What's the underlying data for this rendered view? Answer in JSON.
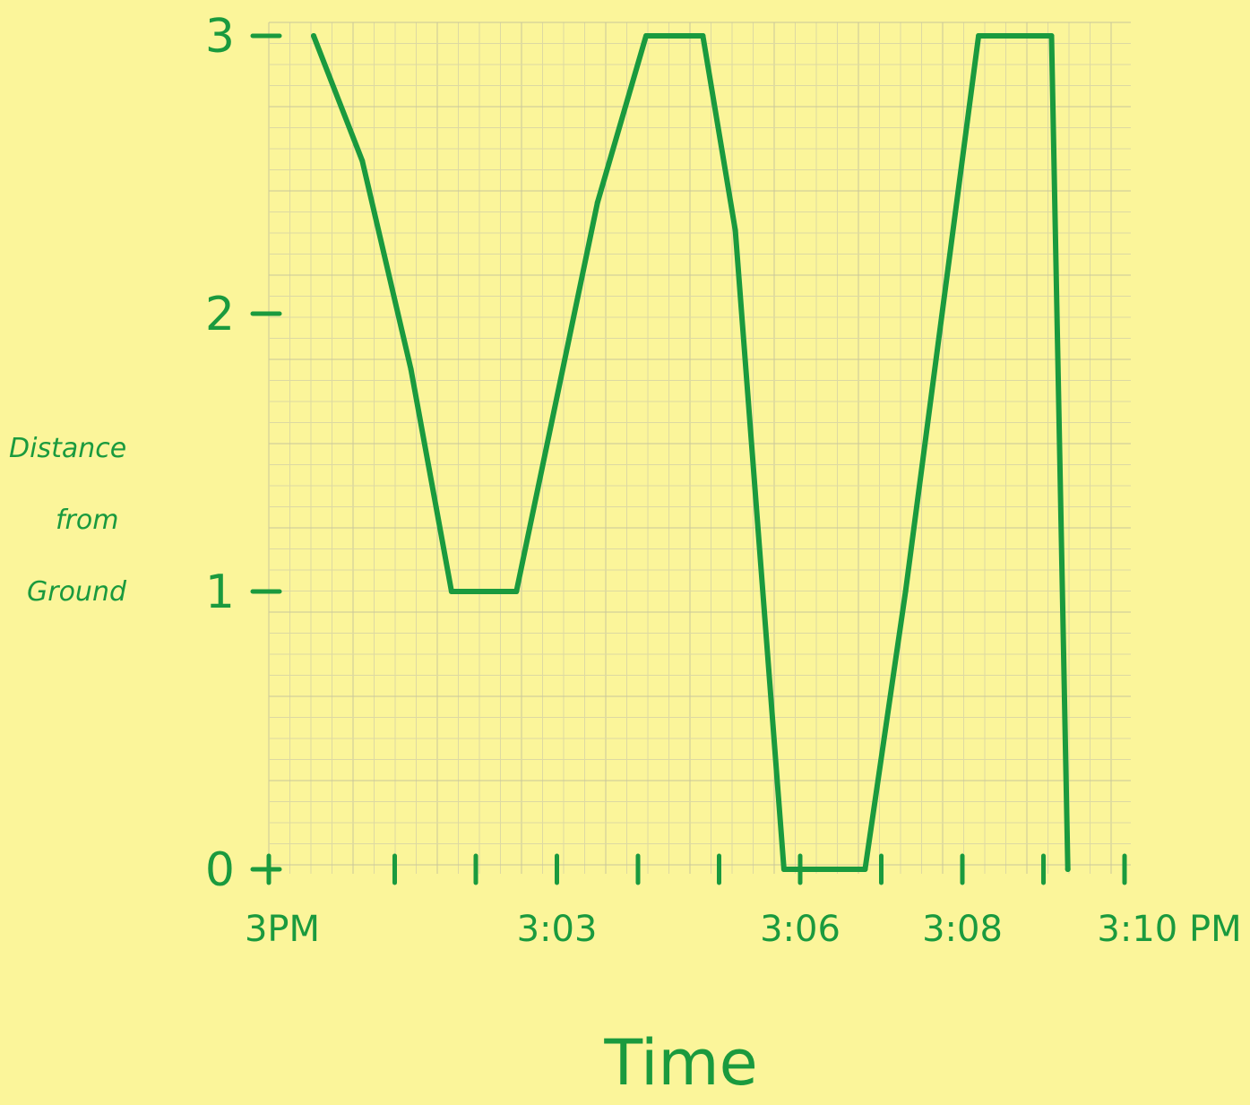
{
  "chart_data": {
    "type": "line",
    "title": "",
    "xlabel": "Time",
    "ylabel": "Distance from Ground",
    "ylabel_lines": [
      "Distance",
      "from",
      "Ground"
    ],
    "x_unit": "minutes after 3 PM",
    "xlim": [
      0,
      10
    ],
    "ylim": [
      0,
      3
    ],
    "x_tick_labels": [
      {
        "x": 0,
        "label": "3PM"
      },
      {
        "x": 3,
        "label": "3:03"
      },
      {
        "x": 6,
        "label": "3:06"
      },
      {
        "x": 8,
        "label": "3:08"
      },
      {
        "x": 10,
        "label": "3:10 PM"
      }
    ],
    "y_tick_labels": [
      {
        "y": 0,
        "label": "0"
      },
      {
        "y": 1,
        "label": "1"
      },
      {
        "y": 2,
        "label": "2"
      },
      {
        "y": 3,
        "label": "3"
      }
    ],
    "minor_x_ticks": [
      0,
      1,
      2,
      3,
      4,
      5,
      6,
      7,
      8,
      9,
      10
    ],
    "grid": true,
    "series": [
      {
        "color": "#1a9a3e",
        "points": [
          {
            "x": 0.0,
            "y": 3.0
          },
          {
            "x": 0.6,
            "y": 2.55
          },
          {
            "x": 1.2,
            "y": 1.8
          },
          {
            "x": 1.7,
            "y": 1.0
          },
          {
            "x": 2.5,
            "y": 1.0
          },
          {
            "x": 3.5,
            "y": 2.4
          },
          {
            "x": 4.1,
            "y": 3.0
          },
          {
            "x": 4.8,
            "y": 3.0
          },
          {
            "x": 5.2,
            "y": 2.3
          },
          {
            "x": 5.8,
            "y": 0.0
          },
          {
            "x": 6.8,
            "y": 0.0
          },
          {
            "x": 7.3,
            "y": 1.0
          },
          {
            "x": 8.2,
            "y": 3.0
          },
          {
            "x": 9.1,
            "y": 3.0
          },
          {
            "x": 9.3,
            "y": 0.0
          }
        ]
      }
    ]
  }
}
